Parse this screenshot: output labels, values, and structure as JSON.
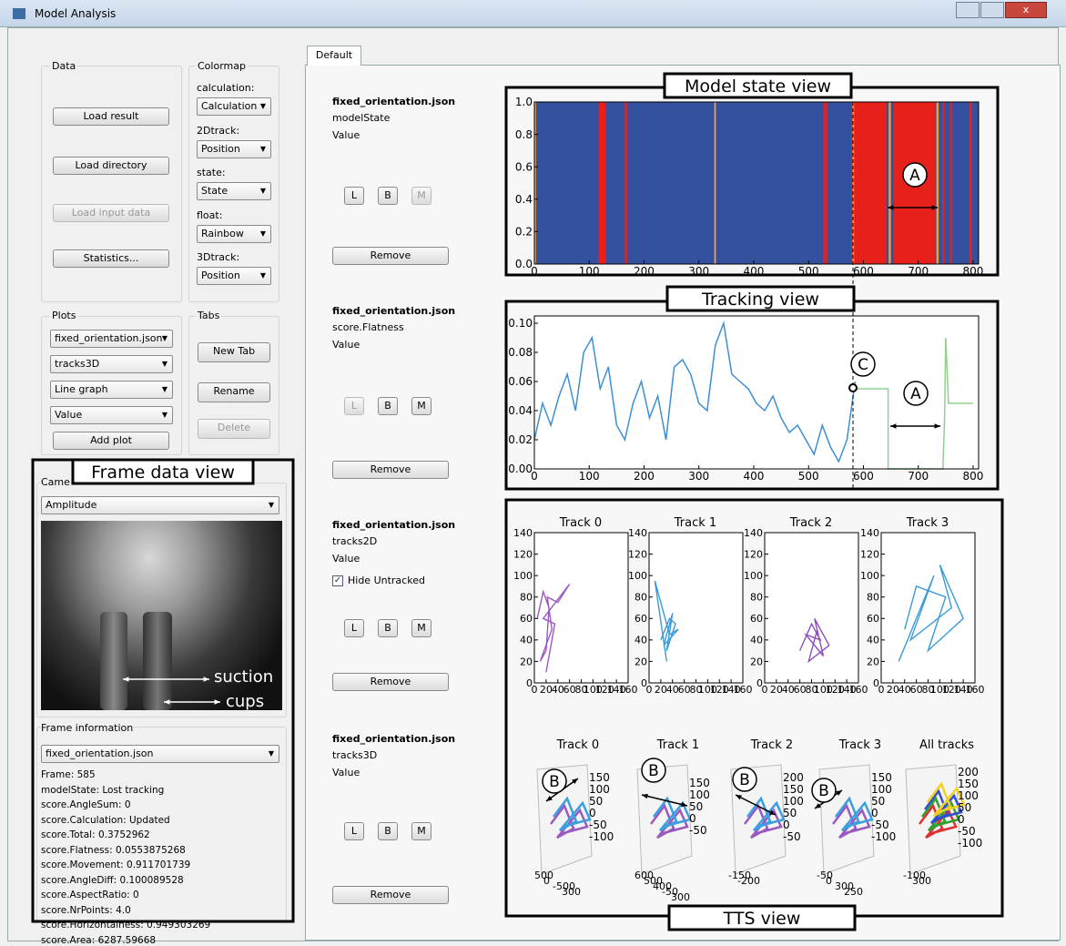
{
  "window": {
    "title": "Model Analysis"
  },
  "left_panel": {
    "data_group": {
      "title": "Data",
      "buttons": [
        "Load result",
        "Load directory",
        "Load input data",
        "Statistics..."
      ]
    },
    "colormap_group": {
      "title": "Colormap",
      "items": [
        {
          "label": "calculation:",
          "value": "Calculation"
        },
        {
          "label": "2Dtrack:",
          "value": "Position"
        },
        {
          "label": "state:",
          "value": "State"
        },
        {
          "label": "float:",
          "value": "Rainbow"
        },
        {
          "label": "3Dtrack:",
          "value": "Position"
        }
      ]
    },
    "plots_group": {
      "title": "Plots",
      "combos": [
        "fixed_orientation.json",
        "tracks3D",
        "Line graph",
        "Value"
      ],
      "button": "Add plot"
    },
    "tabs_group": {
      "title": "Tabs",
      "buttons": [
        "New Tab",
        "Rename",
        "Delete"
      ]
    },
    "camera_group": {
      "title": "Came",
      "combo": "Amplitude",
      "annotations": [
        "suction",
        "cups"
      ]
    },
    "frame_info": {
      "title": "Frame information",
      "combo": "fixed_orientation.json",
      "lines": [
        "Frame: 585",
        "modelState: Lost tracking",
        "score.AngleSum: 0",
        "score.Calculation: Updated",
        "score.Total: 0.3752962",
        "score.Flatness: 0.0553875268",
        "score.Movement: 0.911701739",
        "score.AngleDiff: 0.100089528",
        "score.AspectRatio: 0",
        "score.NrPoints: 4.0",
        "score.Horizontalness: 0.949303269",
        "score.Area: 6287.59668"
      ]
    }
  },
  "tab": "Default",
  "plot_rows": [
    {
      "file": "fixed_orientation.json",
      "field": "modelState",
      "mode": "Value",
      "buttons": [
        "L",
        "B",
        "M"
      ],
      "remove": "Remove"
    },
    {
      "file": "fixed_orientation.json",
      "field": "score.Flatness",
      "mode": "Value",
      "buttons": [
        "L",
        "B",
        "M"
      ],
      "remove": "Remove"
    },
    {
      "file": "fixed_orientation.json",
      "field": "tracks2D",
      "mode": "Value",
      "checkbox": "Hide Untracked",
      "buttons": [
        "L",
        "B",
        "M"
      ],
      "remove": "Remove"
    },
    {
      "file": "fixed_orientation.json",
      "field": "tracks3D",
      "mode": "Value",
      "buttons": [
        "L",
        "B",
        "M"
      ],
      "remove": "Remove"
    }
  ],
  "annotations": {
    "model_state_view": "Model state view",
    "tracking_view": "Tracking view",
    "tts_view": "TTS view",
    "frame_data_view": "Frame data view",
    "markers": [
      "A",
      "A",
      "C",
      "B",
      "B",
      "B",
      "B"
    ]
  },
  "charts": {
    "model_state": {
      "type": "timeline",
      "xlim": [
        0,
        810
      ],
      "ylim": [
        0,
        1
      ],
      "xticks": [
        0,
        100,
        200,
        300,
        400,
        500,
        600,
        700,
        800
      ],
      "yticks": [
        {
          "value": 0,
          "label": "0.0"
        },
        0.2,
        0.4,
        0.6,
        0.8,
        {
          "value": 1,
          "label": "1.0"
        }
      ],
      "segments": [
        {
          "start": 0,
          "end": 810,
          "color": "#3451a0"
        },
        {
          "start": 0,
          "end": 3,
          "color": "#f0a040"
        },
        {
          "start": 117,
          "end": 130,
          "color": "#e8201c"
        },
        {
          "start": 165,
          "end": 169,
          "color": "#e8201c"
        },
        {
          "start": 328,
          "end": 331,
          "color": "#f0a040"
        },
        {
          "start": 527,
          "end": 534,
          "color": "#e8201c"
        },
        {
          "start": 578,
          "end": 642,
          "color": "#e8201c"
        },
        {
          "start": 580,
          "end": 583,
          "color": "#f0a040"
        },
        {
          "start": 646,
          "end": 650,
          "color": "#f0a040"
        },
        {
          "start": 655,
          "end": 731,
          "color": "#e8201c"
        },
        {
          "start": 733,
          "end": 737,
          "color": "#f0a040"
        },
        {
          "start": 744,
          "end": 748,
          "color": "#e8201c"
        },
        {
          "start": 758,
          "end": 762,
          "color": "#e8201c"
        },
        {
          "start": 793,
          "end": 798,
          "color": "#e8201c"
        }
      ]
    },
    "tracking": {
      "type": "line",
      "xlim": [
        0,
        810
      ],
      "ylim": [
        0,
        0.105
      ],
      "xticks": [
        0,
        100,
        200,
        300,
        400,
        500,
        600,
        700,
        800
      ],
      "yticks": [
        {
          "value": 0,
          "label": "0.00"
        },
        0.02,
        0.04,
        0.06,
        0.08,
        {
          "value": 0.1,
          "label": "0.10"
        }
      ],
      "series": [
        {
          "color": "#3d8fd4",
          "x": [
            0,
            15,
            30,
            45,
            60,
            75,
            90,
            105,
            120,
            135,
            150,
            165,
            180,
            195,
            210,
            225,
            240,
            255,
            270,
            285,
            300,
            315,
            330,
            345,
            360,
            375,
            390,
            405,
            420,
            435,
            450,
            465,
            480,
            495,
            510,
            525,
            540,
            555,
            570,
            585
          ],
          "values": [
            0.02,
            0.045,
            0.03,
            0.05,
            0.065,
            0.04,
            0.08,
            0.09,
            0.055,
            0.07,
            0.03,
            0.02,
            0.045,
            0.06,
            0.035,
            0.05,
            0.02,
            0.07,
            0.075,
            0.065,
            0.045,
            0.04,
            0.085,
            0.1,
            0.065,
            0.06,
            0.055,
            0.045,
            0.04,
            0.05,
            0.035,
            0.025,
            0.03,
            0.02,
            0.01,
            0.03,
            0.015,
            0.005,
            0.02,
            0.06
          ]
        },
        {
          "color": "#8fd08f",
          "x": [
            585,
            645,
            645,
            745,
            748,
            750,
            755,
            800
          ],
          "values": [
            0.055,
            0.055,
            0,
            0,
            0.035,
            0.09,
            0.045,
            0.045
          ]
        }
      ]
    },
    "tracks2d": {
      "type": "line",
      "xlim": [
        0,
        160
      ],
      "ylim": [
        0,
        140
      ],
      "xticks": [
        0,
        20,
        40,
        60,
        80,
        100,
        120,
        140,
        160
      ],
      "yticks": [
        0,
        20,
        40,
        60,
        80,
        100,
        120,
        140
      ],
      "subplots": [
        {
          "title": "Track 0",
          "color": "#9b59c0",
          "x": [
            5,
            15,
            25,
            20,
            10,
            30,
            22,
            40,
            60,
            15,
            35,
            20
          ],
          "values": [
            60,
            85,
            70,
            30,
            20,
            50,
            80,
            75,
            92,
            60,
            55,
            10
          ]
        },
        {
          "title": "Track 1",
          "color": "#3a9ad9",
          "x": [
            20,
            35,
            45,
            30,
            40,
            25,
            50,
            35,
            10,
            30
          ],
          "values": [
            40,
            60,
            55,
            30,
            65,
            35,
            50,
            45,
            95,
            20
          ]
        },
        {
          "title": "Track 2",
          "color": "#8a4fbf",
          "x": [
            60,
            80,
            95,
            70,
            100,
            85,
            110,
            75,
            90
          ],
          "values": [
            30,
            55,
            40,
            45,
            25,
            60,
            35,
            20,
            50
          ]
        },
        {
          "title": "Track 3",
          "color": "#3a9ad9",
          "x": [
            30,
            60,
            90,
            50,
            120,
            100,
            140,
            80,
            110,
            60,
            40
          ],
          "values": [
            20,
            60,
            100,
            40,
            70,
            110,
            60,
            30,
            80,
            90,
            50
          ]
        }
      ]
    },
    "tracks3d": {
      "type": "scatter3d",
      "subplots": [
        {
          "title": "Track 0",
          "zticks": [
            150,
            100,
            50,
            0,
            -50,
            -100
          ],
          "bottom": [
            "500",
            "0",
            "-500",
            "300"
          ]
        },
        {
          "title": "Track 1",
          "zticks": [
            150,
            100,
            50,
            0,
            -50
          ],
          "bottom": [
            "600",
            "500",
            "400",
            "-50",
            "300"
          ]
        },
        {
          "title": "Track 2",
          "zticks": [
            200,
            150,
            100,
            50,
            0,
            -50
          ],
          "bottom": [
            "-150",
            "-200"
          ]
        },
        {
          "title": "Track 3",
          "zticks": [
            150,
            100,
            50,
            0,
            -50,
            -100
          ],
          "bottom": [
            "-50",
            "0",
            "300",
            "250"
          ]
        },
        {
          "title": "All tracks",
          "zticks": [
            200,
            150,
            100,
            50,
            0,
            -50,
            -100
          ],
          "bottom": [
            "-100",
            "300"
          ]
        }
      ]
    }
  }
}
